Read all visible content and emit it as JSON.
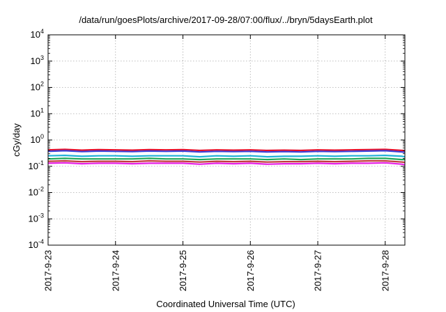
{
  "chart_data": {
    "type": "line",
    "title": "/data/run/goesPlots/archive/2017-09-28/07:00/flux/../bryn/5daysEarth.plot",
    "xlabel": "Coordinated Universal Time (UTC)",
    "ylabel": "cGy/day",
    "yscale": "log",
    "ylim": [
      0.0001,
      10000
    ],
    "xlim": [
      "2017-09-23T00:00",
      "2017-09-28T07:00"
    ],
    "grid": true,
    "y_ticks": [
      {
        "value": 0.0001,
        "base": "10",
        "exp": "-4"
      },
      {
        "value": 0.001,
        "base": "10",
        "exp": "-3"
      },
      {
        "value": 0.01,
        "base": "10",
        "exp": "-2"
      },
      {
        "value": 0.1,
        "base": "10",
        "exp": "-1"
      },
      {
        "value": 1,
        "base": "10",
        "exp": "0"
      },
      {
        "value": 10,
        "base": "10",
        "exp": "1"
      },
      {
        "value": 100,
        "base": "10",
        "exp": "2"
      },
      {
        "value": 1000,
        "base": "10",
        "exp": "3"
      },
      {
        "value": 10000,
        "base": "10",
        "exp": "4"
      }
    ],
    "x_ticks": [
      {
        "value": "2017-09-23T00:00",
        "label": "2017-9-23"
      },
      {
        "value": "2017-09-24T00:00",
        "label": "2017-9-24"
      },
      {
        "value": "2017-09-25T00:00",
        "label": "2017-9-25"
      },
      {
        "value": "2017-09-26T00:00",
        "label": "2017-9-26"
      },
      {
        "value": "2017-09-27T00:00",
        "label": "2017-9-27"
      },
      {
        "value": "2017-09-28T00:00",
        "label": "2017-9-28"
      }
    ],
    "series": [
      {
        "color": "#e8102a",
        "values": [
          [
            "2017-09-23T00:00",
            0.42
          ],
          [
            "2017-09-23T06:00",
            0.44
          ],
          [
            "2017-09-23T12:00",
            0.41
          ],
          [
            "2017-09-23T18:00",
            0.43
          ],
          [
            "2017-09-24T00:00",
            0.42
          ],
          [
            "2017-09-24T06:00",
            0.41
          ],
          [
            "2017-09-24T12:00",
            0.43
          ],
          [
            "2017-09-24T18:00",
            0.42
          ],
          [
            "2017-09-25T00:00",
            0.43
          ],
          [
            "2017-09-25T06:00",
            0.4
          ],
          [
            "2017-09-25T12:00",
            0.42
          ],
          [
            "2017-09-25T18:00",
            0.41
          ],
          [
            "2017-09-26T00:00",
            0.42
          ],
          [
            "2017-09-26T06:00",
            0.4
          ],
          [
            "2017-09-26T12:00",
            0.41
          ],
          [
            "2017-09-26T18:00",
            0.4
          ],
          [
            "2017-09-27T00:00",
            0.42
          ],
          [
            "2017-09-27T06:00",
            0.41
          ],
          [
            "2017-09-27T12:00",
            0.42
          ],
          [
            "2017-09-27T18:00",
            0.43
          ],
          [
            "2017-09-28T00:00",
            0.44
          ],
          [
            "2017-09-28T06:00",
            0.4
          ],
          [
            "2017-09-28T07:00",
            0.39
          ]
        ]
      },
      {
        "color": "#3a3fd8",
        "values": [
          [
            "2017-09-23T00:00",
            0.37
          ],
          [
            "2017-09-23T06:00",
            0.39
          ],
          [
            "2017-09-23T12:00",
            0.36
          ],
          [
            "2017-09-23T18:00",
            0.38
          ],
          [
            "2017-09-24T00:00",
            0.37
          ],
          [
            "2017-09-24T06:00",
            0.36
          ],
          [
            "2017-09-24T12:00",
            0.38
          ],
          [
            "2017-09-24T18:00",
            0.37
          ],
          [
            "2017-09-25T00:00",
            0.38
          ],
          [
            "2017-09-25T06:00",
            0.35
          ],
          [
            "2017-09-25T12:00",
            0.37
          ],
          [
            "2017-09-25T18:00",
            0.36
          ],
          [
            "2017-09-26T00:00",
            0.37
          ],
          [
            "2017-09-26T06:00",
            0.35
          ],
          [
            "2017-09-26T12:00",
            0.36
          ],
          [
            "2017-09-26T18:00",
            0.35
          ],
          [
            "2017-09-27T00:00",
            0.37
          ],
          [
            "2017-09-27T06:00",
            0.36
          ],
          [
            "2017-09-27T12:00",
            0.37
          ],
          [
            "2017-09-27T18:00",
            0.38
          ],
          [
            "2017-09-28T00:00",
            0.39
          ],
          [
            "2017-09-28T06:00",
            0.35
          ],
          [
            "2017-09-28T07:00",
            0.34
          ]
        ]
      },
      {
        "color": "#1fb1d8",
        "values": [
          [
            "2017-09-23T00:00",
            0.25
          ],
          [
            "2017-09-23T06:00",
            0.26
          ],
          [
            "2017-09-23T12:00",
            0.24
          ],
          [
            "2017-09-23T18:00",
            0.25
          ],
          [
            "2017-09-24T00:00",
            0.25
          ],
          [
            "2017-09-24T06:00",
            0.24
          ],
          [
            "2017-09-24T12:00",
            0.25
          ],
          [
            "2017-09-24T18:00",
            0.25
          ],
          [
            "2017-09-25T00:00",
            0.25
          ],
          [
            "2017-09-25T06:00",
            0.23
          ],
          [
            "2017-09-25T12:00",
            0.25
          ],
          [
            "2017-09-25T18:00",
            0.24
          ],
          [
            "2017-09-26T00:00",
            0.25
          ],
          [
            "2017-09-26T06:00",
            0.23
          ],
          [
            "2017-09-26T12:00",
            0.24
          ],
          [
            "2017-09-26T18:00",
            0.24
          ],
          [
            "2017-09-27T00:00",
            0.25
          ],
          [
            "2017-09-27T06:00",
            0.24
          ],
          [
            "2017-09-27T12:00",
            0.25
          ],
          [
            "2017-09-27T18:00",
            0.25
          ],
          [
            "2017-09-28T00:00",
            0.26
          ],
          [
            "2017-09-28T06:00",
            0.24
          ],
          [
            "2017-09-28T07:00",
            0.23
          ]
        ]
      },
      {
        "color": "#1fa85a",
        "values": [
          [
            "2017-09-23T00:00",
            0.19
          ],
          [
            "2017-09-23T06:00",
            0.2
          ],
          [
            "2017-09-23T12:00",
            0.19
          ],
          [
            "2017-09-23T18:00",
            0.19
          ],
          [
            "2017-09-24T00:00",
            0.19
          ],
          [
            "2017-09-24T06:00",
            0.19
          ],
          [
            "2017-09-24T12:00",
            0.2
          ],
          [
            "2017-09-24T18:00",
            0.19
          ],
          [
            "2017-09-25T00:00",
            0.19
          ],
          [
            "2017-09-25T06:00",
            0.18
          ],
          [
            "2017-09-25T12:00",
            0.19
          ],
          [
            "2017-09-25T18:00",
            0.19
          ],
          [
            "2017-09-26T00:00",
            0.19
          ],
          [
            "2017-09-26T06:00",
            0.18
          ],
          [
            "2017-09-26T12:00",
            0.19
          ],
          [
            "2017-09-26T18:00",
            0.18
          ],
          [
            "2017-09-27T00:00",
            0.19
          ],
          [
            "2017-09-27T06:00",
            0.19
          ],
          [
            "2017-09-27T12:00",
            0.19
          ],
          [
            "2017-09-27T18:00",
            0.2
          ],
          [
            "2017-09-28T00:00",
            0.2
          ],
          [
            "2017-09-28T06:00",
            0.18
          ],
          [
            "2017-09-28T07:00",
            0.18
          ]
        ]
      },
      {
        "color": "#c03a3a",
        "values": [
          [
            "2017-09-23T00:00",
            0.155
          ],
          [
            "2017-09-23T06:00",
            0.16
          ],
          [
            "2017-09-23T12:00",
            0.15
          ],
          [
            "2017-09-23T18:00",
            0.155
          ],
          [
            "2017-09-24T00:00",
            0.155
          ],
          [
            "2017-09-24T06:00",
            0.15
          ],
          [
            "2017-09-24T12:00",
            0.16
          ],
          [
            "2017-09-24T18:00",
            0.155
          ],
          [
            "2017-09-25T00:00",
            0.155
          ],
          [
            "2017-09-25T06:00",
            0.145
          ],
          [
            "2017-09-25T12:00",
            0.155
          ],
          [
            "2017-09-25T18:00",
            0.15
          ],
          [
            "2017-09-26T00:00",
            0.155
          ],
          [
            "2017-09-26T06:00",
            0.145
          ],
          [
            "2017-09-26T12:00",
            0.15
          ],
          [
            "2017-09-26T18:00",
            0.15
          ],
          [
            "2017-09-27T00:00",
            0.155
          ],
          [
            "2017-09-27T06:00",
            0.15
          ],
          [
            "2017-09-27T12:00",
            0.155
          ],
          [
            "2017-09-27T18:00",
            0.16
          ],
          [
            "2017-09-28T00:00",
            0.16
          ],
          [
            "2017-09-28T06:00",
            0.145
          ],
          [
            "2017-09-28T07:00",
            0.14
          ]
        ]
      },
      {
        "color": "#e61fe6",
        "values": [
          [
            "2017-09-23T00:00",
            0.13
          ],
          [
            "2017-09-23T06:00",
            0.135
          ],
          [
            "2017-09-23T12:00",
            0.125
          ],
          [
            "2017-09-23T18:00",
            0.13
          ],
          [
            "2017-09-24T00:00",
            0.13
          ],
          [
            "2017-09-24T06:00",
            0.125
          ],
          [
            "2017-09-24T12:00",
            0.13
          ],
          [
            "2017-09-24T18:00",
            0.13
          ],
          [
            "2017-09-25T00:00",
            0.13
          ],
          [
            "2017-09-25T06:00",
            0.12
          ],
          [
            "2017-09-25T12:00",
            0.13
          ],
          [
            "2017-09-25T18:00",
            0.125
          ],
          [
            "2017-09-26T00:00",
            0.13
          ],
          [
            "2017-09-26T06:00",
            0.12
          ],
          [
            "2017-09-26T12:00",
            0.125
          ],
          [
            "2017-09-26T18:00",
            0.125
          ],
          [
            "2017-09-27T00:00",
            0.13
          ],
          [
            "2017-09-27T06:00",
            0.125
          ],
          [
            "2017-09-27T12:00",
            0.13
          ],
          [
            "2017-09-27T18:00",
            0.13
          ],
          [
            "2017-09-28T00:00",
            0.135
          ],
          [
            "2017-09-28T06:00",
            0.12
          ],
          [
            "2017-09-28T07:00",
            0.115
          ]
        ]
      }
    ]
  }
}
